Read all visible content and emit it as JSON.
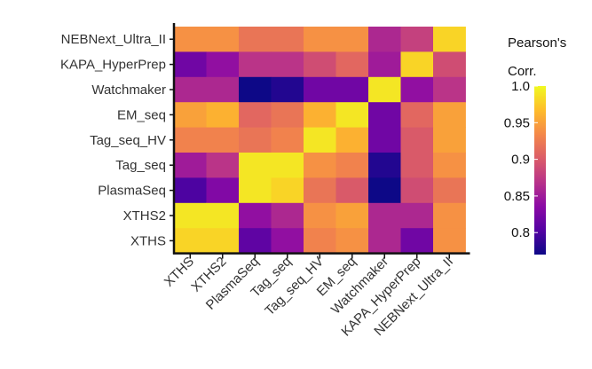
{
  "chart_data": {
    "type": "heatmap",
    "rows": [
      "NEBNext_Ultra_II",
      "KAPA_HyperPrep",
      "Watchmaker",
      "EM_seq",
      "Tag_seq_HV",
      "Tag_seq",
      "PlasmaSeq",
      "XTHS2",
      "XTHS"
    ],
    "columns": [
      "XTHS",
      "XTHS2",
      "PlasmaSeq",
      "Tag_seq",
      "Tag_seq_HV",
      "EM_seq",
      "Watchmaker",
      "KAPA_HyperPrep",
      "NEBNext_Ultra_II"
    ],
    "values": [
      [
        0.94,
        0.94,
        0.92,
        0.92,
        0.94,
        0.94,
        0.86,
        0.88,
        0.98
      ],
      [
        0.82,
        0.84,
        0.87,
        0.87,
        0.89,
        0.91,
        0.85,
        0.98,
        0.89
      ],
      [
        0.86,
        0.86,
        0.77,
        0.78,
        0.82,
        0.82,
        0.99,
        0.84,
        0.87
      ],
      [
        0.95,
        0.96,
        0.91,
        0.92,
        0.96,
        0.99,
        0.82,
        0.91,
        0.95
      ],
      [
        0.93,
        0.93,
        0.92,
        0.93,
        0.99,
        0.96,
        0.82,
        0.9,
        0.95
      ],
      [
        0.85,
        0.87,
        0.99,
        0.99,
        0.94,
        0.93,
        0.78,
        0.9,
        0.94
      ],
      [
        0.8,
        0.83,
        0.99,
        0.98,
        0.92,
        0.9,
        0.77,
        0.89,
        0.92
      ],
      [
        0.99,
        0.99,
        0.84,
        0.86,
        0.94,
        0.95,
        0.86,
        0.86,
        0.94
      ],
      [
        0.98,
        0.98,
        0.81,
        0.84,
        0.93,
        0.94,
        0.86,
        0.82,
        0.94
      ]
    ],
    "legend": {
      "title_line1": "Pearson's",
      "title_line2": "Corr.",
      "ticks": [
        1.0,
        0.95,
        0.9,
        0.85,
        0.8
      ],
      "tick_labels": [
        "1.0",
        "0.95",
        "0.9",
        "0.85",
        "0.8"
      ],
      "min": 0.77,
      "max": 1.0,
      "placement": "right"
    },
    "colormap": [
      "#0d0887",
      "#5302a3",
      "#8b0aa5",
      "#b83289",
      "#db5c68",
      "#f48849",
      "#febc2a",
      "#f0f921"
    ]
  }
}
